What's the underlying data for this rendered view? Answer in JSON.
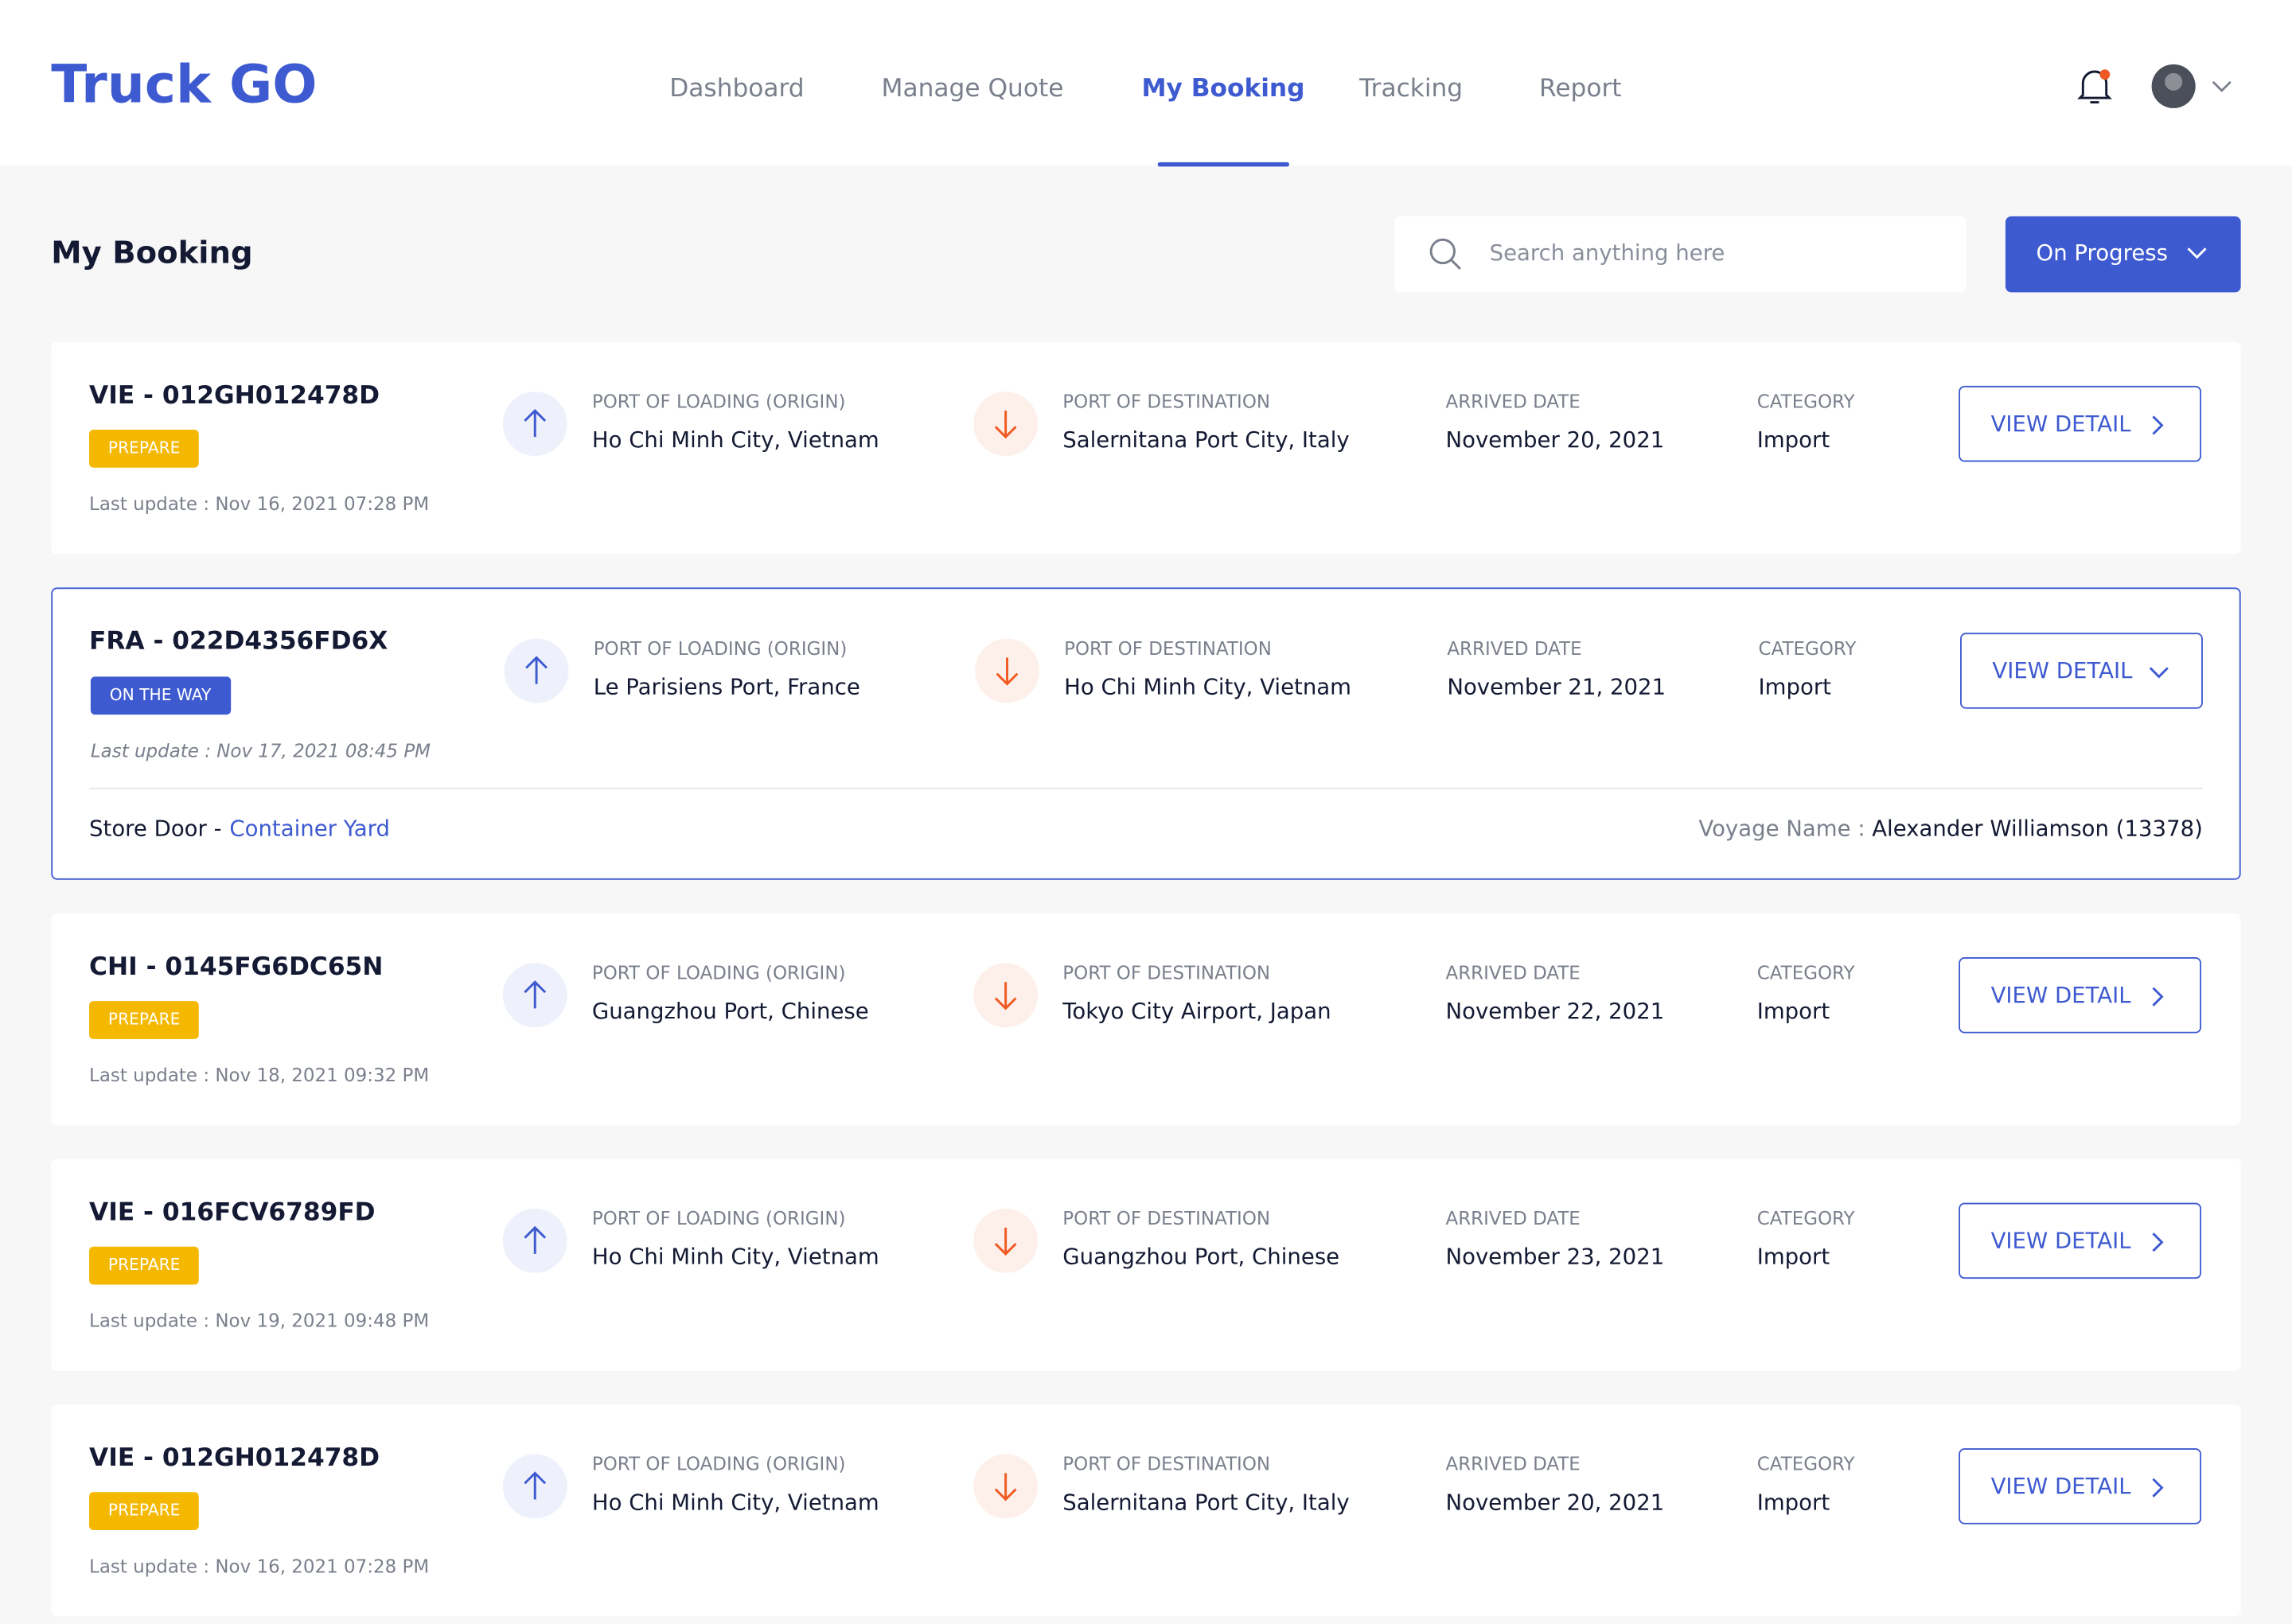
{
  "header": {
    "logo": "Truck GO",
    "nav": [
      "Dashboard",
      "Manage Quote",
      "My Booking",
      "Tracking",
      "Report"
    ],
    "active_nav": 2
  },
  "page": {
    "title": "My Booking",
    "search_placeholder": "Search anything here",
    "filter": "On Progress"
  },
  "columns": {
    "origin": "PORT OF LOADING (ORIGIN)",
    "destination": "PORT OF DESTINATION",
    "arrived": "ARRIVED DATE",
    "category": "CATEGORY",
    "button": "VIEW DETAIL"
  },
  "bookings": [
    {
      "id": "VIE - 012GH012478D",
      "status": "PREPARE",
      "last_update": "Last update : Nov 16, 2021 07:28 PM",
      "origin": "Ho Chi Minh City, Vietnam",
      "destination": "Salernitana Port City, Italy",
      "arrived": "November 20, 2021",
      "category": "Import"
    },
    {
      "id": "FRA - 022D4356FD6X",
      "status": "ON THE WAY",
      "last_update": "Last update : Nov 17, 2021 08:45 PM",
      "origin": "Le Parisiens Port, France",
      "destination": "Ho Chi Minh City, Vietnam",
      "arrived": "November 21, 2021",
      "category": "Import",
      "details": {
        "store_door": "Store Door -",
        "container_yard": "Container Yard",
        "voyage_label": "Voyage Name :",
        "voyage_name": "Alexander Williamson (13378)"
      }
    },
    {
      "id": "CHI - 0145FG6DC65N",
      "status": "PREPARE",
      "last_update": "Last update : Nov 18, 2021 09:32 PM",
      "origin": "Guangzhou Port, Chinese",
      "destination": "Tokyo City Airport, Japan",
      "arrived": "November 22, 2021",
      "category": "Import"
    },
    {
      "id": "VIE - 016FCV6789FD",
      "status": "PREPARE",
      "last_update": "Last update : Nov 19, 2021 09:48 PM",
      "origin": "Ho Chi Minh City, Vietnam",
      "destination": "Guangzhou Port, Chinese",
      "arrived": "November 23, 2021",
      "category": "Import"
    },
    {
      "id": "VIE - 012GH012478D",
      "status": "PREPARE",
      "last_update": "Last update : Nov 16, 2021 07:28 PM",
      "origin": "Ho Chi Minh City, Vietnam",
      "destination": "Salernitana Port City, Italy",
      "arrived": "November 20, 2021",
      "category": "Import"
    }
  ]
}
